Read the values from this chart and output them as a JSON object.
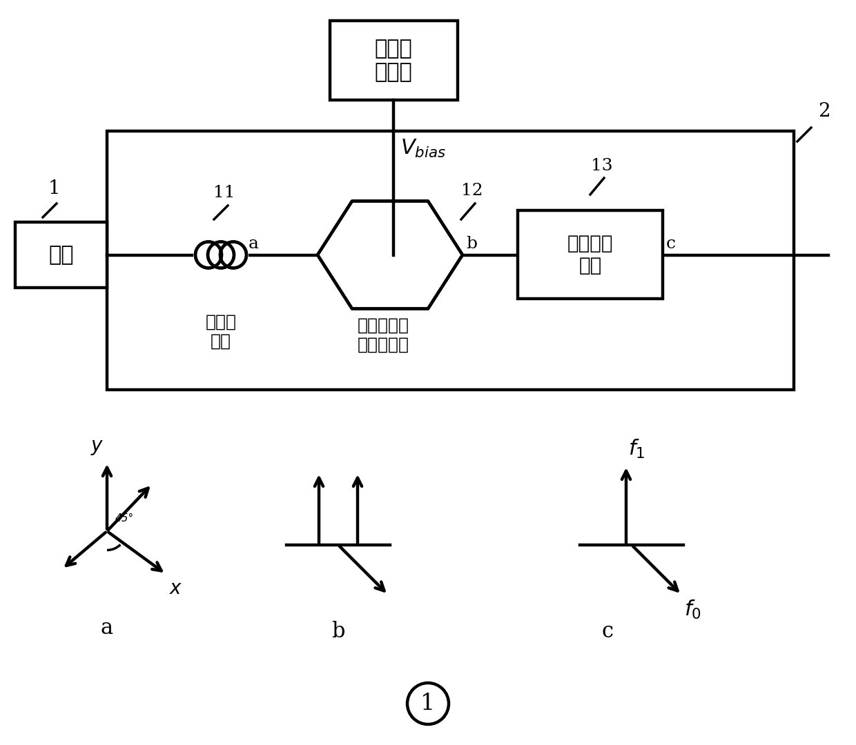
{
  "bg_color": "#ffffff",
  "figsize": [
    12.4,
    10.8
  ],
  "dpi": 100,
  "label_guangyuan": "光源",
  "label_piezhen": "偶振控\n制器",
  "label_mach": "马赫曾德尔\n电光调制器",
  "label_guangdai": "光带通滤\n波器",
  "label_zhendang": "振荡微\n波信号",
  "label_1": "1",
  "label_2": "2",
  "label_11": "11",
  "label_12": "12",
  "label_13": "13",
  "label_a_pt": "a",
  "label_b_pt": "b",
  "label_c_pt": "c",
  "label_a_diag": "a",
  "label_b_diag": "b",
  "label_c_diag": "c",
  "label_vbias": "$\\mathit{V}_{\\mathit{bias}}$",
  "label_x": "$\\mathit{x}$",
  "label_y": "$\\mathit{y}$",
  "label_f0": "$\\mathit{f}_{0}$",
  "label_f1": "$\\mathit{f}_{1}$"
}
